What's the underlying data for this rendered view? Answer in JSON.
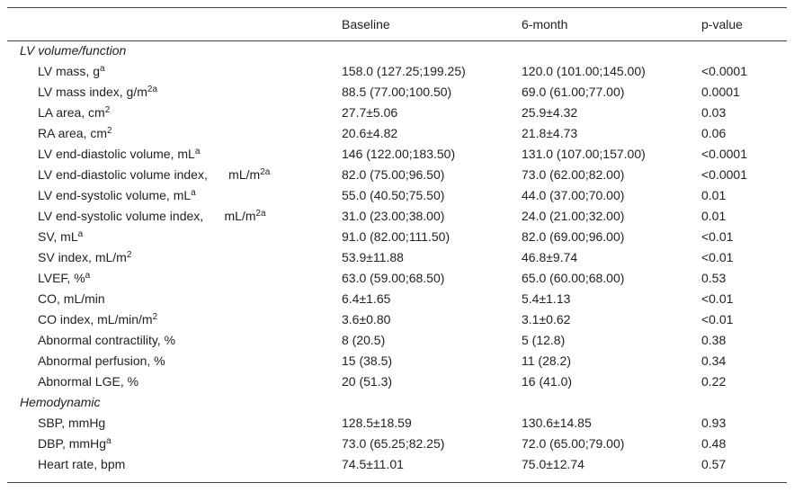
{
  "table": {
    "header": [
      "Baseline",
      "6-month",
      "p-value"
    ],
    "sections": [
      {
        "title": "LV volume/function",
        "rows": [
          {
            "label": "LV mass, g",
            "sup": "a",
            "values": [
              "158.0 (127.25;199.25)",
              "120.0 (101.00;145.00)",
              "<0.0001"
            ]
          },
          {
            "label": "LV mass index, g/m",
            "sup": "2a",
            "values": [
              "88.5 (77.00;100.50)",
              "69.0 (61.00;77.00)",
              "0.0001"
            ]
          },
          {
            "label": "LA area, cm",
            "sup": "2",
            "values": [
              "27.7±5.06",
              "25.9±4.32",
              "0.03"
            ]
          },
          {
            "label": "RA area, cm",
            "sup": "2",
            "values": [
              "20.6±4.82",
              "21.8±4.73",
              "0.06"
            ]
          },
          {
            "label": "LV end-diastolic volume, mL",
            "sup": "a",
            "values": [
              "146 (122.00;183.50)",
              "131.0 (107.00;157.00)",
              "<0.0001"
            ]
          },
          {
            "label": "LV end-diastolic volume index,      mL/m",
            "sup": "2a",
            "values": [
              "82.0 (75.00;96.50)",
              "73.0 (62.00;82.00)",
              "<0.0001"
            ]
          },
          {
            "label": "LV end-systolic volume, mL",
            "sup": "a",
            "values": [
              "55.0 (40.50;75.50)",
              "44.0 (37.00;70.00)",
              "0.01"
            ]
          },
          {
            "label": "LV end-systolic volume index,      mL/m",
            "sup": "2a",
            "values": [
              "31.0 (23.00;38.00)",
              "24.0 (21.00;32.00)",
              "0.01"
            ]
          },
          {
            "label": "SV, mL",
            "sup": "a",
            "values": [
              "91.0 (82.00;111.50)",
              "82.0 (69.00;96.00)",
              "<0.01"
            ]
          },
          {
            "label": "SV index, mL/m",
            "sup": "2",
            "values": [
              "53.9±11.88",
              "46.8±9.74",
              "<0.01"
            ]
          },
          {
            "label": "LVEF, %",
            "sup": "a",
            "values": [
              "63.0 (59.00;68.50)",
              "65.0 (60.00;68.00)",
              "0.53"
            ]
          },
          {
            "label": "CO, mL/min",
            "values": [
              "6.4±1.65",
              "5.4±1.13",
              "<0.01"
            ]
          },
          {
            "label": "CO index, mL/min/m",
            "sup": "2",
            "values": [
              "3.6±0.80",
              "3.1±0.62",
              "<0.01"
            ]
          },
          {
            "label": "Abnormal contractility, %",
            "values": [
              "8 (20.5)",
              "5 (12.8)",
              "0.38"
            ]
          },
          {
            "label": "Abnormal perfusion, %",
            "values": [
              "15 (38.5)",
              "11 (28.2)",
              "0.34"
            ]
          },
          {
            "label": "Abnormal LGE, %",
            "values": [
              "20 (51.3)",
              "16 (41.0)",
              "0.22"
            ]
          }
        ]
      },
      {
        "title": "Hemodynamic",
        "rows": [
          {
            "label": "SBP, mmHg",
            "values": [
              "128.5±18.59",
              "130.6±14.85",
              "0.93"
            ]
          },
          {
            "label": "DBP, mmHg",
            "sup": "a",
            "values": [
              "73.0 (65.25;82.25)",
              "72.0 (65.00;79.00)",
              "0.48"
            ]
          },
          {
            "label": "Heart rate, bpm",
            "values": [
              "74.5±11.01",
              "75.0±12.74",
              "0.57"
            ]
          }
        ]
      }
    ]
  }
}
